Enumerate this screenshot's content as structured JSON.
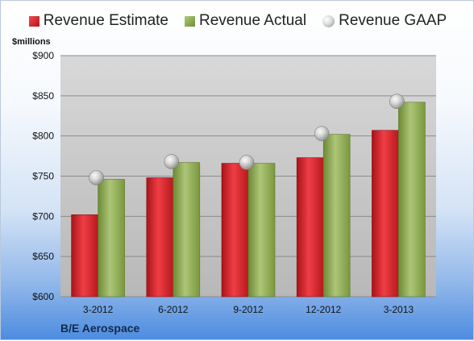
{
  "chart_data": {
    "type": "bar",
    "categories": [
      "3-2012",
      "6-2012",
      "9-2012",
      "12-2012",
      "3-2013"
    ],
    "series": [
      {
        "name": "Revenue Estimate",
        "values": [
          702,
          748,
          766,
          773,
          807
        ],
        "color": "#c8181f"
      },
      {
        "name": "Revenue Actual",
        "values": [
          746,
          767,
          766,
          802,
          842
        ],
        "color": "#8aa64a"
      },
      {
        "name": "Revenue GAAP",
        "values": [
          748,
          768,
          767,
          803,
          843
        ],
        "color": "#bfbfbf",
        "marker": "circle"
      }
    ],
    "ylabel": "$millions",
    "ylim": [
      600,
      900
    ],
    "yticks": [
      "$600",
      "$650",
      "$700",
      "$750",
      "$800",
      "$850",
      "$900"
    ],
    "ytick_values": [
      600,
      650,
      700,
      750,
      800,
      850,
      900
    ],
    "grid": true,
    "legend_position": "top",
    "caption": "B/E Aerospace"
  }
}
